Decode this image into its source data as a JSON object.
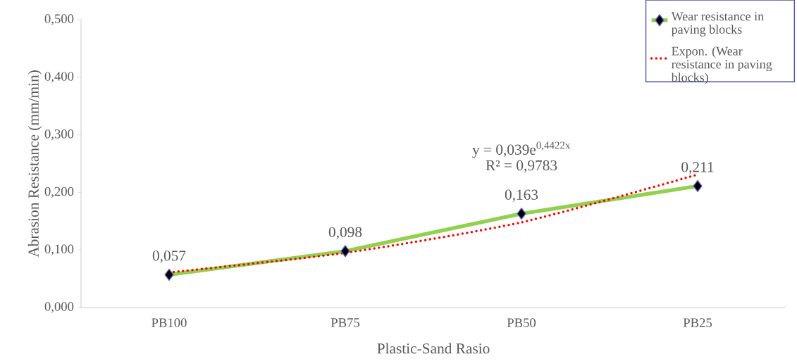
{
  "chart_data": {
    "type": "line",
    "xlabel": "Plastic-Sand Rasio",
    "ylabel": "Abrasion Resistance (mm/min)",
    "categories": [
      "PB100",
      "PB75",
      "PB50",
      "PB25"
    ],
    "series": [
      {
        "name": "Wear resistance in paving blocks",
        "color": "#92d050",
        "marker": "diamond",
        "line_style": "solid",
        "values": [
          0.057,
          0.098,
          0.163,
          0.211
        ],
        "value_labels": [
          "0,057",
          "0,098",
          "0,163",
          "0,211"
        ]
      },
      {
        "name": "Expon. (Wear resistance in paving blocks)",
        "type": "line",
        "color": "#ff0000",
        "marker": "none",
        "line_style": "dotted",
        "values": [
          0.061,
          0.095,
          0.148,
          0.231
        ]
      }
    ],
    "ylim": [
      0,
      0.5
    ],
    "yticks": [
      {
        "value": 0,
        "label": "0,000"
      },
      {
        "value": 0.1,
        "label": "0,100"
      },
      {
        "value": 0.2,
        "label": "0,200"
      },
      {
        "value": 0.3,
        "label": "0,300"
      },
      {
        "value": 0.4,
        "label": "0,400"
      },
      {
        "value": 0.5,
        "label": "0,500"
      }
    ],
    "annotations": [
      "y = 0,039e$^{0,4422x}$",
      "R² = 0,9783"
    ],
    "grid": false,
    "legend": "top right"
  }
}
